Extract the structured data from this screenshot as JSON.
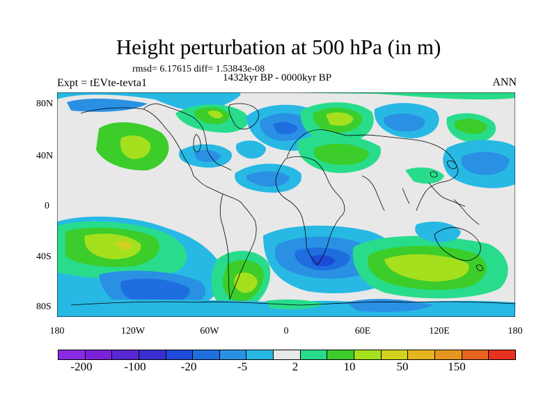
{
  "title": "Height perturbation at 500 hPa (in m)",
  "stats": "rmsd= 6.17615 diff= 1.53843e-08",
  "period": "1432kyr BP - 0000kyr BP",
  "experiment": "Expt = tEVte-tevta1",
  "season": "ANN",
  "lat_labels": [
    "80N",
    "40N",
    "0",
    "40S",
    "80S"
  ],
  "lon_labels": [
    "180",
    "120W",
    "60W",
    "0",
    "60E",
    "120E",
    "180"
  ],
  "colorbar": {
    "colors": [
      "#8a2be2",
      "#7a22d8",
      "#5a28d0",
      "#3a2ed0",
      "#1e4ad8",
      "#1e6ee0",
      "#2a90e4",
      "#28b8e4",
      "#e8e8e8",
      "#28dc8c",
      "#3ccd2a",
      "#a5e01e",
      "#d2d21e",
      "#e6b41e",
      "#e6961e",
      "#e6641e",
      "#e6321e"
    ],
    "labels": [
      "-200",
      "-100",
      "-20",
      "-5",
      "2",
      "10",
      "50",
      "150"
    ]
  }
}
